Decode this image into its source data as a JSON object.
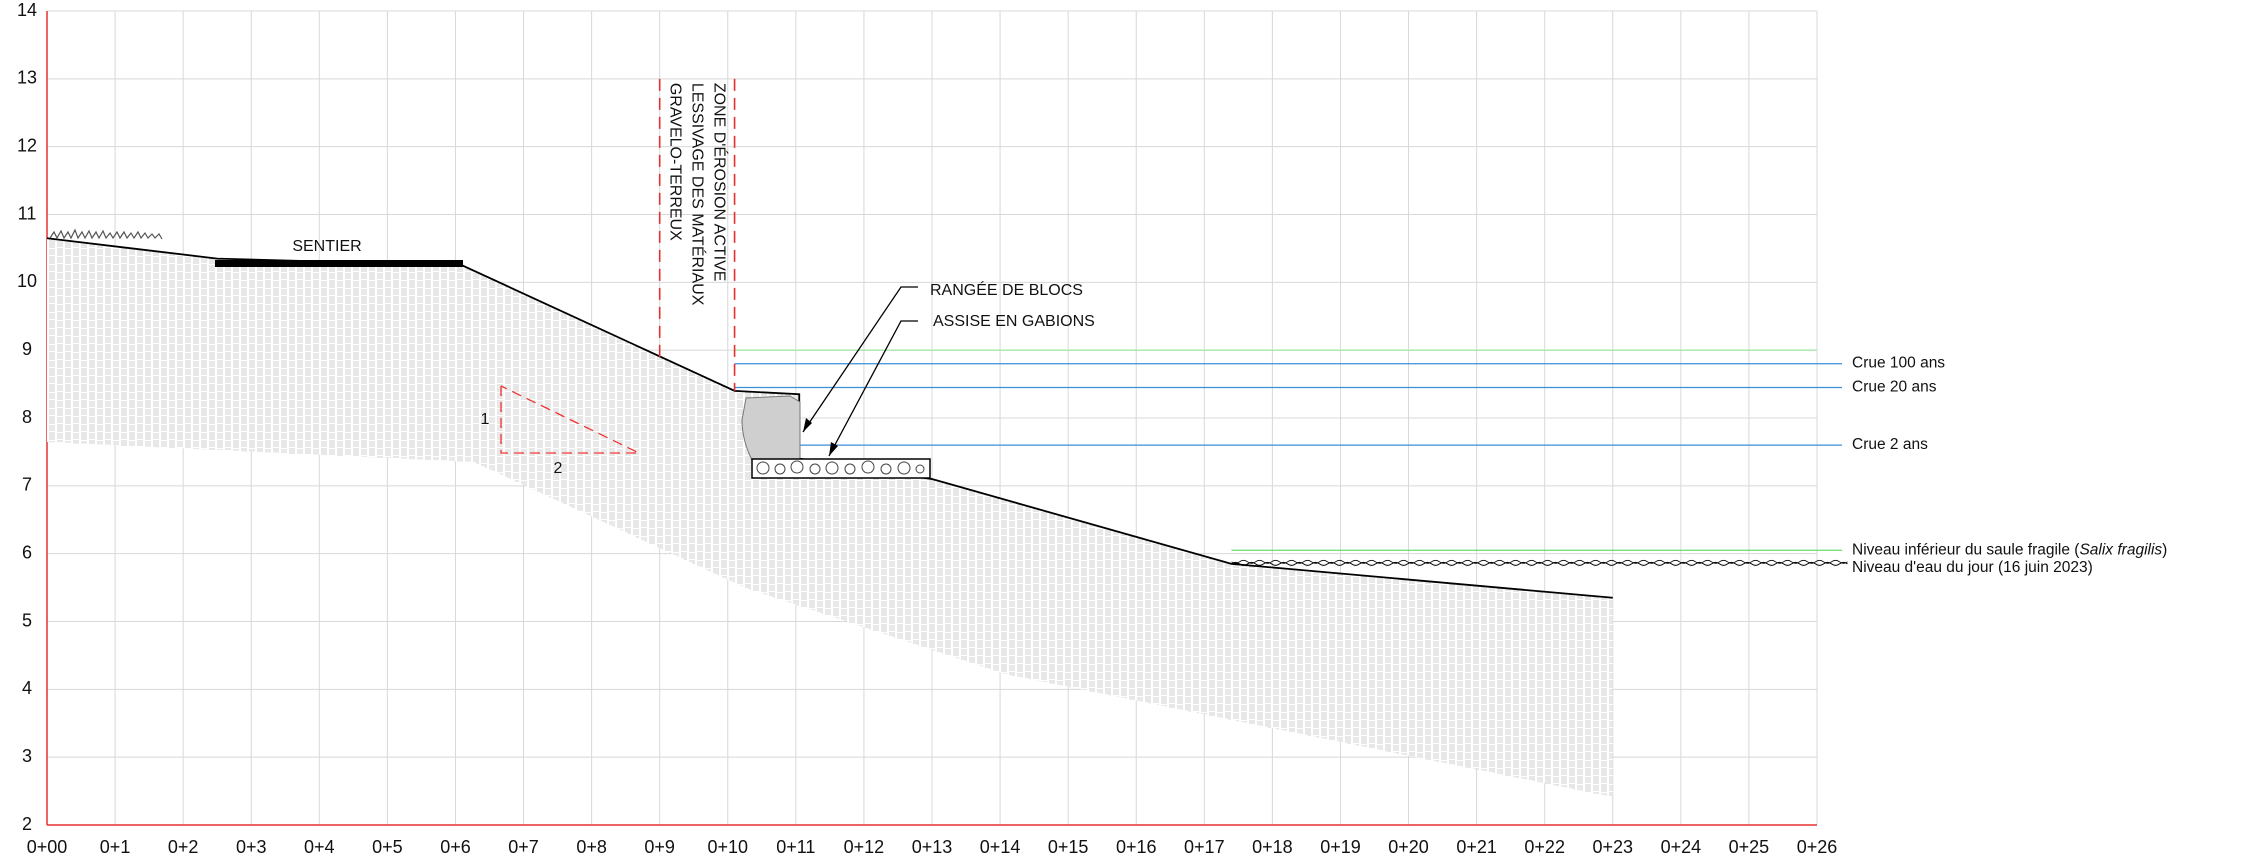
{
  "chart_data": {
    "type": "line",
    "xlim": [
      0,
      26
    ],
    "ylim": [
      2,
      14
    ],
    "xticks": [
      {
        "value": 0,
        "label": "0+00"
      },
      {
        "value": 1,
        "label": "0+1"
      },
      {
        "value": 2,
        "label": "0+2"
      },
      {
        "value": 3,
        "label": "0+3"
      },
      {
        "value": 4,
        "label": "0+4"
      },
      {
        "value": 5,
        "label": "0+5"
      },
      {
        "value": 6,
        "label": "0+6"
      },
      {
        "value": 7,
        "label": "0+7"
      },
      {
        "value": 8,
        "label": "0+8"
      },
      {
        "value": 9,
        "label": "0+9"
      },
      {
        "value": 10,
        "label": "0+10"
      },
      {
        "value": 11,
        "label": "0+11"
      },
      {
        "value": 12,
        "label": "0+12"
      },
      {
        "value": 13,
        "label": "0+13"
      },
      {
        "value": 14,
        "label": "0+14"
      },
      {
        "value": 15,
        "label": "0+15"
      },
      {
        "value": 16,
        "label": "0+16"
      },
      {
        "value": 17,
        "label": "0+17"
      },
      {
        "value": 18,
        "label": "0+18"
      },
      {
        "value": 19,
        "label": "0+19"
      },
      {
        "value": 20,
        "label": "0+20"
      },
      {
        "value": 21,
        "label": "0+21"
      },
      {
        "value": 22,
        "label": "0+22"
      },
      {
        "value": 23,
        "label": "0+23"
      },
      {
        "value": 24,
        "label": "0+24"
      },
      {
        "value": 25,
        "label": "0+25"
      },
      {
        "value": 26,
        "label": "0+26"
      }
    ],
    "yticks": [
      2,
      3,
      4,
      5,
      6,
      7,
      8,
      9,
      10,
      11,
      12,
      13,
      14
    ],
    "grid": true,
    "profile": {
      "color": "#000000",
      "x": [
        0,
        2.5,
        6.1,
        10.1,
        11.05,
        11.05,
        13.0,
        17.4,
        23.0
      ],
      "y": [
        10.65,
        10.35,
        10.25,
        8.4,
        8.35,
        7.4,
        7.1,
        5.85,
        5.35
      ]
    },
    "levels": [
      {
        "value": 9.0,
        "x_start": 10.1,
        "color": "#a8e6a8"
      },
      {
        "label_parts": [
          {
            "text": "Crue 100 ans"
          }
        ],
        "value": 8.8,
        "x_start": 10.1,
        "color": "#3a8fd9"
      },
      {
        "label_parts": [
          {
            "text": "Crue 20 ans"
          }
        ],
        "value": 8.45,
        "x_start": 10.1,
        "color": "#3a8fd9"
      },
      {
        "label_parts": [
          {
            "text": "Crue 2 ans"
          }
        ],
        "value": 7.6,
        "x_start": 11.05,
        "color": "#3a8fd9"
      },
      {
        "label_parts": [
          {
            "text": "Niveau inférieur du saule fragile ("
          },
          {
            "text": "Salix fragilis",
            "italic": true
          },
          {
            "text": ")"
          }
        ],
        "value": 6.05,
        "x_start": 17.4,
        "color": "#66dd66"
      },
      {
        "label_parts": [
          {
            "text": "Niveau d'eau du jour (16 juin 2023)"
          }
        ],
        "value": 5.85,
        "x_start": 17.4,
        "color": "#000000",
        "style": "wave"
      }
    ],
    "annotations": {
      "sentier": "SENTIER",
      "blocks": "RANGÉE DE BLOCS",
      "gabions": "ASSISE EN GABIONS",
      "slope": {
        "rise": "1",
        "run": "2"
      }
    },
    "erosion_zone": {
      "lines": [
        9.0,
        10.1
      ],
      "top": 13.0,
      "bottoms": [
        8.9,
        8.4
      ],
      "labels": [
        "ZONE D'ÉROSION ACTIVE",
        "LESSIVAGE DES MATÉRIAUX",
        "GRAVELO-TERREUX"
      ]
    }
  }
}
